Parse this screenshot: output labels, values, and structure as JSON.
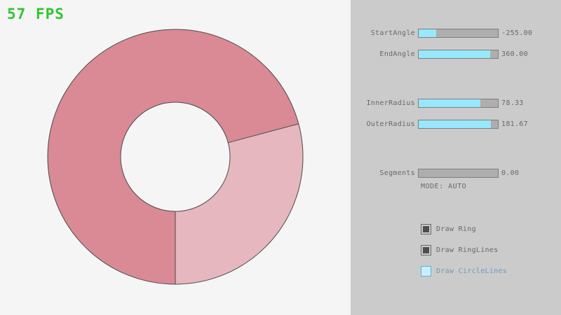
{
  "fps": {
    "text": "57 FPS"
  },
  "colors": {
    "background": "#f5f5f5",
    "panel_background": "#cbcbcb",
    "fps_green": "#33c433",
    "slider_fill": "#97e8ff",
    "slider_track": "#aeaeae",
    "border": "#7e7e7e",
    "text": "#686868",
    "accent_blue_border": "#5bb2d9",
    "accent_blue_fill": "#c9effe",
    "accent_blue_text": "#6c9bbc",
    "ring_dark": "#d98a95",
    "ring_light": "#e6b7be",
    "ring_line": "#4a4a4a"
  },
  "ring": {
    "start_angle": -255.0,
    "end_angle": 360.0,
    "inner_radius": 78.33,
    "outer_radius": 181.67,
    "segments": 0
  },
  "panel": {
    "sliders": [
      {
        "name": "StartAngle",
        "value": "-255.00",
        "fraction": 0.217
      },
      {
        "name": "EndAngle",
        "value": "360.00",
        "fraction": 0.9
      },
      {
        "name": "InnerRadius",
        "value": "78.33",
        "fraction": 0.783
      },
      {
        "name": "OuterRadius",
        "value": "181.67",
        "fraction": 0.908
      },
      {
        "name": "Segments",
        "value": "0.00",
        "fraction": 0
      }
    ],
    "mode_label": "MODE: AUTO",
    "checkboxes": [
      {
        "label": "Draw Ring",
        "checked": true
      },
      {
        "label": "Draw RingLines",
        "checked": true
      },
      {
        "label": "Draw CircleLines",
        "checked": false
      }
    ]
  }
}
